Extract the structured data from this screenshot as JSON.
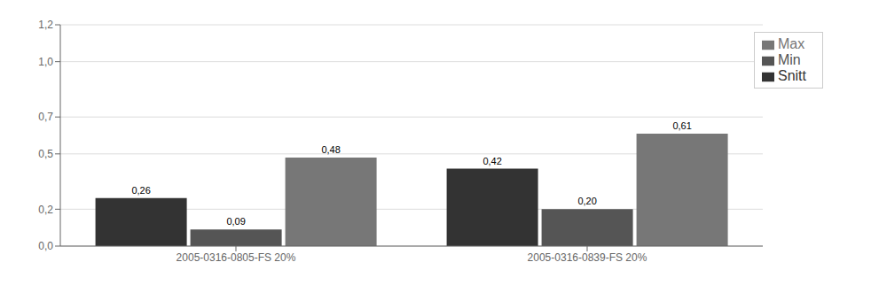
{
  "chart_data": {
    "type": "bar",
    "categories": [
      "2005-0316-0805-FS 20%",
      "2005-0316-0839-FS 20%"
    ],
    "series": [
      {
        "name": "Snitt",
        "color": "#333333",
        "values": [
          0.26,
          0.42
        ],
        "value_labels": [
          "0,26",
          "0,42"
        ]
      },
      {
        "name": "Min",
        "color": "#555555",
        "values": [
          0.09,
          0.2
        ],
        "value_labels": [
          "0,09",
          "0,20"
        ]
      },
      {
        "name": "Max",
        "color": "#777777",
        "values": [
          0.48,
          0.61
        ],
        "value_labels": [
          "0,48",
          "0,61"
        ]
      }
    ],
    "ylim": [
      0.0,
      1.2
    ],
    "yticks": [
      {
        "value": 0.0,
        "label": "0,0"
      },
      {
        "value": 0.2,
        "label": "0,2"
      },
      {
        "value": 0.5,
        "label": "0,5"
      },
      {
        "value": 0.7,
        "label": "0,7"
      },
      {
        "value": 1.0,
        "label": "1,0"
      },
      {
        "value": 1.2,
        "label": "1,2"
      }
    ],
    "grid": true,
    "legend": "upper right",
    "data_labels": true
  }
}
